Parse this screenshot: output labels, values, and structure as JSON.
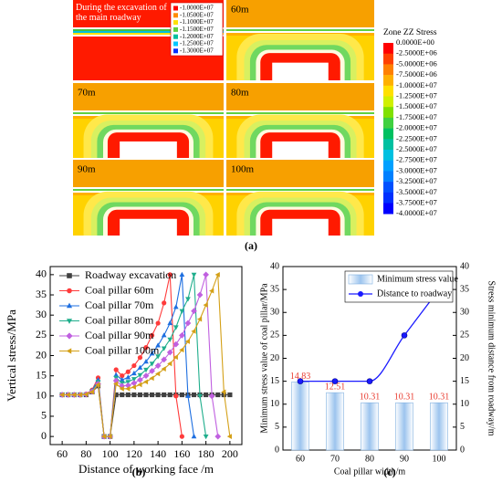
{
  "chart_data": [
    {
      "type": "contour",
      "panels": [
        "During the excavation of the main roadway",
        "60m",
        "70m",
        "80m",
        "90m",
        "100m"
      ],
      "inset_legend": {
        "levels": [
          {
            "value": -10000000,
            "label": "-1.0000E+07"
          },
          {
            "value": -10500000,
            "label": "-1.0500E+07"
          },
          {
            "value": -11000000,
            "label": "-1.1000E+07"
          },
          {
            "value": -11500000,
            "label": "-1.1500E+07"
          },
          {
            "value": -12000000,
            "label": "-1.2000E+07"
          },
          {
            "value": -12500000,
            "label": "-1.2500E+07"
          },
          {
            "value": -13000000,
            "label": "-1.3000E+07"
          }
        ],
        "colors": [
          "#ff0000",
          "#ff8c00",
          "#ffe000",
          "#60d040",
          "#00c0a0",
          "#00c8ff",
          "#0030ff"
        ]
      },
      "colorbar": {
        "title": "Zone ZZ Stress",
        "levels": [
          {
            "value": 0,
            "label": "0.0000E+00"
          },
          {
            "value": -2500000,
            "label": "-2.5000E+06"
          },
          {
            "value": -5000000,
            "label": "-5.0000E+06"
          },
          {
            "value": -7500000,
            "label": "-7.5000E+06"
          },
          {
            "value": -10000000,
            "label": "-1.0000E+07"
          },
          {
            "value": -12500000,
            "label": "-1.2500E+07"
          },
          {
            "value": -15000000,
            "label": "-1.5000E+07"
          },
          {
            "value": -17500000,
            "label": "-1.7500E+07"
          },
          {
            "value": -20000000,
            "label": "-2.0000E+07"
          },
          {
            "value": -22500000,
            "label": "-2.2500E+07"
          },
          {
            "value": -25000000,
            "label": "-2.5000E+07"
          },
          {
            "value": -27500000,
            "label": "-2.7500E+07"
          },
          {
            "value": -30000000,
            "label": "-3.0000E+07"
          },
          {
            "value": -32500000,
            "label": "-3.2500E+07"
          },
          {
            "value": -35000000,
            "label": "-3.5000E+07"
          },
          {
            "value": -37500000,
            "label": "-3.7500E+07"
          },
          {
            "value": -40000000,
            "label": "-4.0000E+07"
          }
        ],
        "colors": [
          "#ff0000",
          "#ff4000",
          "#ff8000",
          "#ffb000",
          "#ffe000",
          "#d0f000",
          "#80e000",
          "#40d040",
          "#00c060",
          "#00c0a0",
          "#00c0e0",
          "#00a0ff",
          "#0080ff",
          "#0050ff",
          "#0030ff",
          "#0000ff"
        ]
      },
      "caption": "(a)"
    },
    {
      "type": "line",
      "x": [
        60,
        65,
        70,
        75,
        80,
        85,
        90,
        95,
        100,
        105,
        110,
        115,
        120,
        125,
        130,
        135,
        140,
        145,
        150,
        155,
        160,
        165,
        170,
        175,
        180,
        185,
        190,
        195,
        200
      ],
      "series": [
        {
          "name": "Roadway excavation",
          "color": "#404040",
          "marker": "square",
          "values": [
            10.3,
            10.3,
            10.3,
            10.3,
            10.3,
            11,
            12.5,
            0,
            0,
            10.3,
            10.3,
            10.3,
            10.3,
            10.3,
            10.3,
            10.3,
            10.3,
            10.3,
            10.3,
            10.3,
            10.3,
            10.3,
            10.3,
            10.3,
            10.3,
            10.3,
            10.3,
            10.3,
            10.3
          ]
        },
        {
          "name": "Coal pillar 60m",
          "color": "#ff3b3b",
          "marker": "circle",
          "values": [
            10.3,
            10.3,
            10.3,
            10.3,
            10.5,
            11.5,
            14.5,
            0,
            0,
            16.5,
            15,
            16,
            17.5,
            19.5,
            22,
            25,
            28,
            33,
            40,
            10,
            0,
            null,
            null,
            null,
            null,
            null,
            null,
            null,
            null
          ]
        },
        {
          "name": "Coal pillar 70m",
          "color": "#1e6fe0",
          "marker": "triangle-up",
          "values": [
            10.3,
            10.3,
            10.3,
            10.3,
            10.4,
            11.3,
            14,
            0,
            0,
            15.2,
            14,
            14.6,
            15.6,
            17,
            18.5,
            20.5,
            22.5,
            25,
            28,
            32,
            40,
            10,
            0,
            null,
            null,
            null,
            null,
            null,
            null
          ]
        },
        {
          "name": "Coal pillar 80m",
          "color": "#1fae8c",
          "marker": "triangle-down",
          "values": [
            10.3,
            10.3,
            10.3,
            10.3,
            10.4,
            11.2,
            13.5,
            0,
            0,
            14.5,
            13.2,
            13.5,
            14.2,
            15.2,
            16.5,
            18,
            19.8,
            21.8,
            24,
            27,
            31,
            34,
            40,
            10,
            0,
            null,
            null,
            null,
            null
          ]
        },
        {
          "name": "Coal pillar 90m",
          "color": "#c060e0",
          "marker": "diamond",
          "values": [
            10.3,
            10.3,
            10.3,
            10.3,
            10.4,
            11.1,
            13,
            0,
            0,
            13.8,
            12.5,
            12.6,
            13.2,
            14,
            15,
            16.2,
            17.5,
            19,
            20.8,
            22.8,
            25,
            28,
            31,
            35,
            40,
            10,
            0,
            null,
            null
          ]
        },
        {
          "name": "Coal pillar 100m",
          "color": "#d4a017",
          "marker": "triangle-left",
          "values": [
            10.3,
            10.3,
            10.3,
            10.3,
            10.4,
            11,
            12.8,
            0,
            0,
            13,
            11.8,
            11.8,
            12.2,
            12.8,
            13.5,
            14.4,
            15.5,
            16.7,
            18,
            19.6,
            21.4,
            23.5,
            26,
            29,
            32.5,
            36,
            40,
            11,
            0
          ]
        }
      ],
      "xlim": [
        50,
        210
      ],
      "xticks": [
        60,
        80,
        100,
        120,
        140,
        160,
        180,
        200
      ],
      "ylim": [
        -2,
        42
      ],
      "yticks": [
        0,
        5,
        10,
        15,
        20,
        25,
        30,
        35,
        40
      ],
      "x_label": "Distance of working face /m",
      "y_label": "Vertical stress/MPa",
      "legend": "top-left",
      "caption": "(b)"
    },
    {
      "type": "bar",
      "categories": [
        "60",
        "70",
        "80",
        "90",
        "100"
      ],
      "series": [
        {
          "name": "Minimum stress value",
          "color": "#9cc4ee",
          "label_color": "#e8392d",
          "values": [
            14.83,
            12.51,
            10.31,
            10.31,
            10.31
          ]
        },
        {
          "name": "Distance to roadway",
          "type": "line",
          "axis": "y2",
          "color": "#1a1aff",
          "values": [
            15,
            15,
            15,
            25,
            35
          ]
        }
      ],
      "ylim": [
        0,
        40
      ],
      "yticks": [
        0,
        5,
        10,
        15,
        20,
        25,
        30,
        35,
        40
      ],
      "y2lim": [
        0,
        40
      ],
      "y2ticks": [
        0,
        5,
        10,
        15,
        20,
        25,
        30,
        35,
        40
      ],
      "x_label": "Coal pillar width/m",
      "y_label": "Minimum stress value of coal pillar/MPa",
      "y2_label": "Stress minimum distance from roadway/m",
      "legend": "top-right",
      "caption": "(c)"
    }
  ]
}
